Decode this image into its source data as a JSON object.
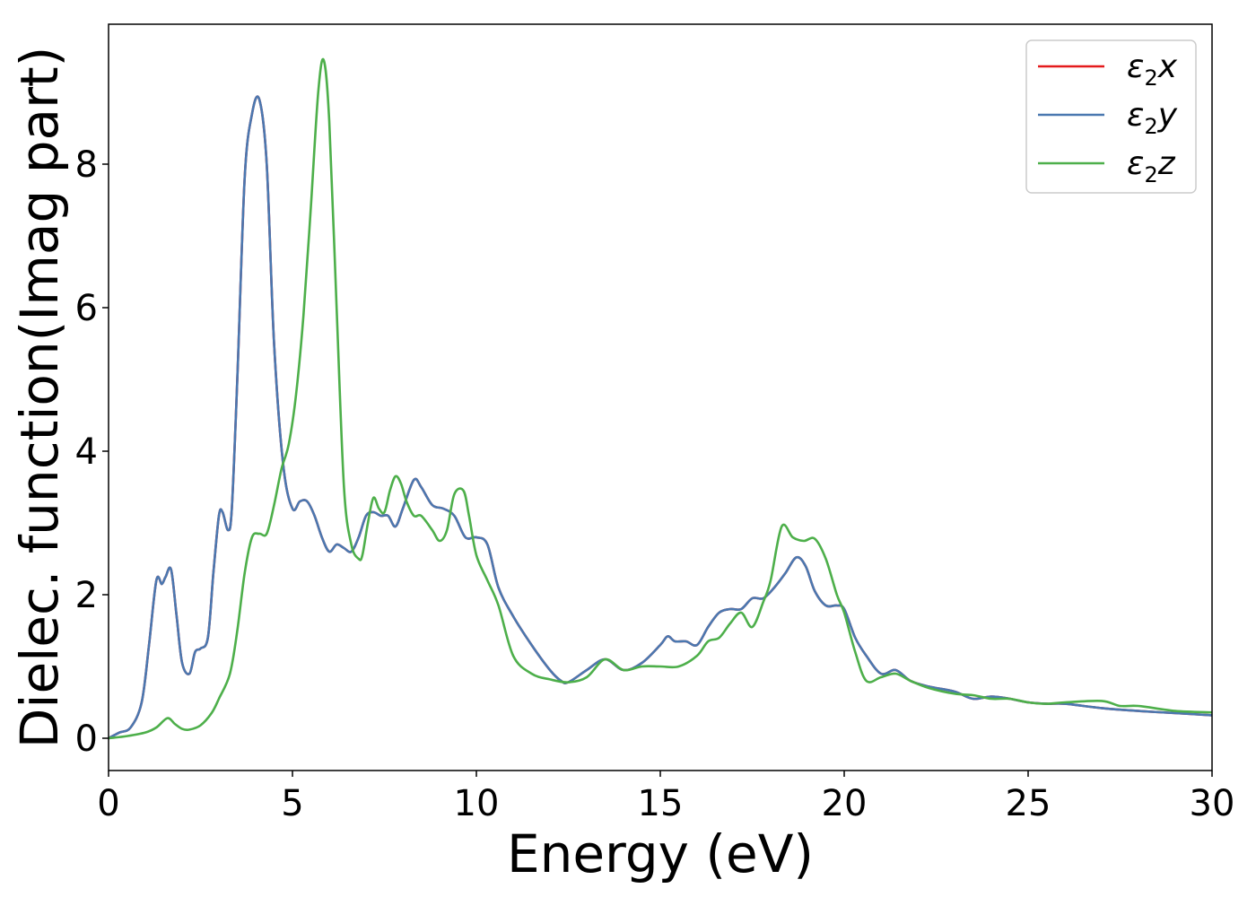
{
  "chart_data": {
    "type": "line",
    "xlabel": "Energy (eV)",
    "ylabel": "Dielec. function(Imag part)",
    "xlim": [
      0,
      30
    ],
    "ylim": [
      -0.45,
      9.95
    ],
    "x_ticks": [
      0,
      5,
      10,
      15,
      20,
      25,
      30
    ],
    "y_ticks": [
      0,
      2,
      4,
      6,
      8
    ],
    "grid": false,
    "legend_position": "top-right",
    "series": [
      {
        "name": "ε2x",
        "legend_symbol": "ε",
        "legend_sub": "2",
        "legend_suffix": "x",
        "color": "#e41a1c",
        "x": [
          0,
          0.3,
          0.6,
          0.9,
          1.1,
          1.3,
          1.45,
          1.55,
          1.7,
          1.85,
          2.0,
          2.2,
          2.35,
          2.5,
          2.7,
          2.85,
          3.0,
          3.1,
          3.25,
          3.35,
          3.5,
          3.7,
          3.9,
          4.1,
          4.3,
          4.5,
          4.75,
          5.0,
          5.2,
          5.4,
          5.6,
          5.8,
          6.0,
          6.2,
          6.4,
          6.6,
          6.8,
          7.0,
          7.2,
          7.4,
          7.6,
          7.8,
          8.0,
          8.3,
          8.5,
          8.8,
          9.1,
          9.4,
          9.7,
          10.0,
          10.3,
          10.6,
          11.0,
          11.5,
          12.0,
          12.3,
          12.5,
          13.0,
          13.5,
          14.0,
          14.5,
          15.0,
          15.2,
          15.4,
          15.7,
          16.0,
          16.3,
          16.6,
          16.9,
          17.2,
          17.5,
          17.8,
          18.1,
          18.4,
          18.7,
          18.95,
          19.2,
          19.5,
          19.8,
          20.0,
          20.3,
          20.6,
          21.0,
          21.4,
          21.8,
          22.3,
          23.0,
          23.5,
          24.0,
          24.5,
          25.0,
          25.5,
          26.0,
          27.0,
          28.0,
          29.0,
          30.0
        ],
        "y": [
          0,
          0.08,
          0.15,
          0.5,
          1.3,
          2.2,
          2.15,
          2.25,
          2.35,
          1.7,
          1.05,
          0.9,
          1.2,
          1.25,
          1.4,
          2.3,
          3.1,
          3.15,
          2.9,
          3.2,
          5.0,
          7.8,
          8.7,
          8.9,
          8.0,
          5.5,
          3.8,
          3.2,
          3.3,
          3.3,
          3.1,
          2.8,
          2.6,
          2.7,
          2.65,
          2.6,
          2.8,
          3.1,
          3.15,
          3.1,
          3.1,
          2.95,
          3.2,
          3.6,
          3.5,
          3.25,
          3.2,
          3.1,
          2.8,
          2.8,
          2.7,
          2.1,
          1.7,
          1.3,
          0.95,
          0.8,
          0.78,
          0.95,
          1.1,
          0.95,
          1.05,
          1.3,
          1.42,
          1.35,
          1.35,
          1.3,
          1.55,
          1.75,
          1.8,
          1.8,
          1.95,
          1.95,
          2.1,
          2.3,
          2.52,
          2.4,
          2.05,
          1.85,
          1.85,
          1.8,
          1.4,
          1.15,
          0.9,
          0.95,
          0.8,
          0.72,
          0.65,
          0.55,
          0.58,
          0.55,
          0.5,
          0.48,
          0.48,
          0.42,
          0.38,
          0.35,
          0.32
        ]
      },
      {
        "name": "ε2y",
        "legend_symbol": "ε",
        "legend_sub": "2",
        "legend_suffix": "y",
        "color": "#4a78b0",
        "x": [
          0,
          0.3,
          0.6,
          0.9,
          1.1,
          1.3,
          1.45,
          1.55,
          1.7,
          1.85,
          2.0,
          2.2,
          2.35,
          2.5,
          2.7,
          2.85,
          3.0,
          3.1,
          3.25,
          3.35,
          3.5,
          3.7,
          3.9,
          4.1,
          4.3,
          4.5,
          4.75,
          5.0,
          5.2,
          5.4,
          5.6,
          5.8,
          6.0,
          6.2,
          6.4,
          6.6,
          6.8,
          7.0,
          7.2,
          7.4,
          7.6,
          7.8,
          8.0,
          8.3,
          8.5,
          8.8,
          9.1,
          9.4,
          9.7,
          10.0,
          10.3,
          10.6,
          11.0,
          11.5,
          12.0,
          12.3,
          12.5,
          13.0,
          13.5,
          14.0,
          14.5,
          15.0,
          15.2,
          15.4,
          15.7,
          16.0,
          16.3,
          16.6,
          16.9,
          17.2,
          17.5,
          17.8,
          18.1,
          18.4,
          18.7,
          18.95,
          19.2,
          19.5,
          19.8,
          20.0,
          20.3,
          20.6,
          21.0,
          21.4,
          21.8,
          22.3,
          23.0,
          23.5,
          24.0,
          24.5,
          25.0,
          25.5,
          26.0,
          27.0,
          28.0,
          29.0,
          30.0
        ],
        "y": [
          0,
          0.08,
          0.15,
          0.5,
          1.3,
          2.2,
          2.15,
          2.25,
          2.35,
          1.7,
          1.05,
          0.9,
          1.2,
          1.25,
          1.4,
          2.3,
          3.1,
          3.15,
          2.9,
          3.2,
          5.0,
          7.8,
          8.7,
          8.9,
          8.0,
          5.5,
          3.8,
          3.2,
          3.3,
          3.3,
          3.1,
          2.8,
          2.6,
          2.7,
          2.65,
          2.6,
          2.8,
          3.1,
          3.15,
          3.1,
          3.1,
          2.95,
          3.2,
          3.6,
          3.5,
          3.25,
          3.2,
          3.1,
          2.8,
          2.8,
          2.7,
          2.1,
          1.7,
          1.3,
          0.95,
          0.8,
          0.78,
          0.95,
          1.1,
          0.95,
          1.05,
          1.3,
          1.42,
          1.35,
          1.35,
          1.3,
          1.55,
          1.75,
          1.8,
          1.8,
          1.95,
          1.95,
          2.1,
          2.3,
          2.52,
          2.4,
          2.05,
          1.85,
          1.85,
          1.8,
          1.4,
          1.15,
          0.9,
          0.95,
          0.8,
          0.72,
          0.65,
          0.55,
          0.58,
          0.55,
          0.5,
          0.48,
          0.48,
          0.42,
          0.38,
          0.35,
          0.32
        ]
      },
      {
        "name": "ε2z",
        "legend_symbol": "ε",
        "legend_sub": "2",
        "legend_suffix": "z",
        "color": "#4daf4a",
        "x": [
          0,
          0.5,
          1.0,
          1.3,
          1.6,
          1.8,
          2.0,
          2.2,
          2.5,
          2.8,
          3.0,
          3.3,
          3.5,
          3.7,
          3.9,
          4.1,
          4.3,
          4.5,
          4.7,
          4.9,
          5.1,
          5.3,
          5.5,
          5.7,
          5.85,
          6.0,
          6.2,
          6.4,
          6.6,
          6.8,
          6.9,
          7.05,
          7.2,
          7.35,
          7.5,
          7.65,
          7.8,
          7.95,
          8.1,
          8.3,
          8.5,
          8.8,
          9.0,
          9.2,
          9.4,
          9.65,
          9.8,
          10.0,
          10.3,
          10.6,
          11.0,
          11.5,
          12.0,
          12.5,
          13.0,
          13.5,
          14.0,
          14.5,
          15.0,
          15.5,
          16.0,
          16.3,
          16.6,
          16.9,
          17.2,
          17.5,
          17.8,
          18.0,
          18.3,
          18.6,
          18.9,
          19.2,
          19.5,
          19.8,
          20.0,
          20.3,
          20.6,
          21.0,
          21.4,
          21.8,
          22.3,
          23.0,
          23.5,
          24.0,
          24.5,
          25.0,
          25.5,
          26.0,
          27.0,
          27.5,
          28.0,
          29.0,
          30.0
        ],
        "y": [
          0,
          0.03,
          0.08,
          0.15,
          0.28,
          0.2,
          0.13,
          0.12,
          0.18,
          0.35,
          0.55,
          0.9,
          1.5,
          2.3,
          2.8,
          2.85,
          2.85,
          3.25,
          3.75,
          4.1,
          4.8,
          5.9,
          7.4,
          9.0,
          9.45,
          8.6,
          6.0,
          3.5,
          2.7,
          2.5,
          2.55,
          3.0,
          3.35,
          3.2,
          3.15,
          3.45,
          3.65,
          3.55,
          3.3,
          3.1,
          3.1,
          2.9,
          2.75,
          2.9,
          3.4,
          3.45,
          3.1,
          2.55,
          2.2,
          1.85,
          1.15,
          0.9,
          0.82,
          0.78,
          0.85,
          1.1,
          0.95,
          1.0,
          1.0,
          1.0,
          1.15,
          1.35,
          1.4,
          1.6,
          1.75,
          1.55,
          1.9,
          2.2,
          2.95,
          2.8,
          2.75,
          2.78,
          2.5,
          2.0,
          1.75,
          1.2,
          0.8,
          0.85,
          0.9,
          0.8,
          0.7,
          0.62,
          0.6,
          0.55,
          0.55,
          0.5,
          0.48,
          0.5,
          0.52,
          0.45,
          0.45,
          0.38,
          0.36
        ]
      }
    ]
  }
}
